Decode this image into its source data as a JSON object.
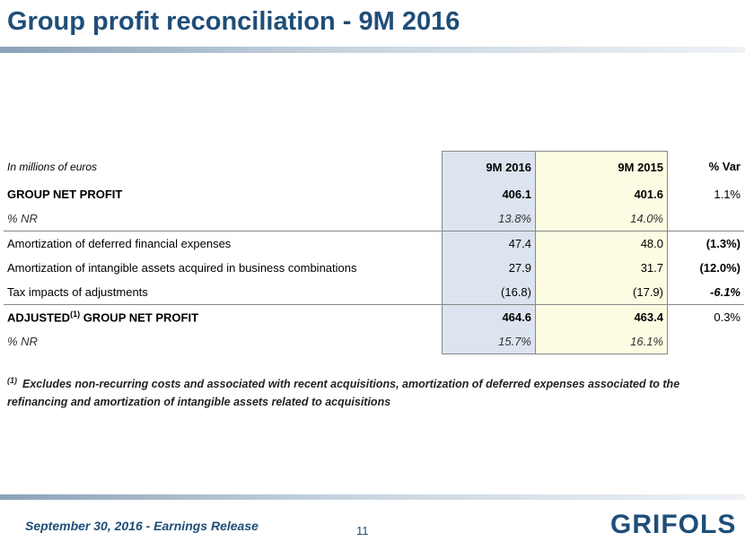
{
  "title": "Group profit reconciliation - 9M 2016",
  "table": {
    "units_label": "In millions of euros",
    "col_headers": [
      "9M 2016",
      "9M 2015",
      "% Var"
    ],
    "rows": [
      {
        "label": "GROUP NET PROFIT",
        "v1": "406.1",
        "v2": "401.6",
        "v3": "1.1%"
      },
      {
        "label": "% NR",
        "v1": "13.8%",
        "v2": "14.0%",
        "v3": ""
      },
      {
        "label": "Amortization of deferred financial expenses",
        "v1": "47.4",
        "v2": "48.0",
        "v3": "(1.3%)"
      },
      {
        "label": "Amortization of intangible assets acquired in business combinations",
        "v1": "27.9",
        "v2": "31.7",
        "v3": "(12.0%)"
      },
      {
        "label": "Tax impacts of adjustments",
        "v1": "(16.8)",
        "v2": "(17.9)",
        "v3": "-6.1%"
      },
      {
        "label_pre": "ADJUSTED",
        "label_sup": "(1)",
        "label_post": " GROUP NET PROFIT",
        "v1": "464.6",
        "v2": "463.4",
        "v3": "0.3%"
      },
      {
        "label": "% NR",
        "v1": "15.7%",
        "v2": "16.1%",
        "v3": ""
      }
    ]
  },
  "footnote": {
    "marker": "(1)",
    "text": "Excludes non-recurring costs and associated with recent acquisitions, amortization of deferred expenses associated to the refinancing and amortization of intangible assets related to acquisitions"
  },
  "footer": {
    "release": "September 30, 2016 - Earnings Release",
    "page": "11",
    "logo": "GRIFOLS"
  }
}
